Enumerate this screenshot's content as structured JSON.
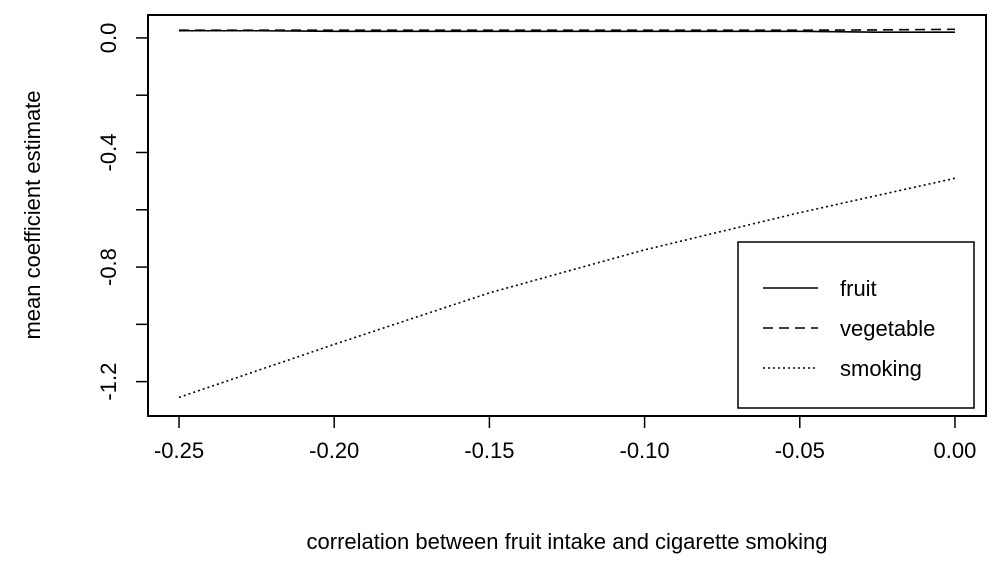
{
  "chart_data": {
    "type": "line",
    "xlabel": "correlation between fruit intake and cigarette smoking",
    "ylabel": "mean coefficient estimate",
    "xlim": [
      -0.26,
      0.01
    ],
    "ylim": [
      -1.32,
      0.08
    ],
    "x_ticks": [
      -0.25,
      -0.2,
      -0.15,
      -0.1,
      -0.05,
      0.0
    ],
    "x_tick_labels": [
      "-0.25",
      "-0.20",
      "-0.15",
      "-0.10",
      "-0.05",
      "0.00"
    ],
    "y_ticks": [
      0.0,
      -0.2,
      -0.4,
      -0.6,
      -0.8,
      -1.0,
      -1.2
    ],
    "y_tick_labels": [
      "0.0",
      "",
      "-0.4",
      "",
      "-0.8",
      "",
      "-1.2"
    ],
    "grid": false,
    "legend_position": "bottom-right",
    "series": [
      {
        "name": "fruit",
        "line_style": "solid",
        "x": [
          -0.25,
          -0.225,
          -0.2,
          -0.15,
          -0.1,
          -0.05,
          -0.025,
          0.0
        ],
        "y": [
          0.025,
          0.025,
          0.023,
          0.023,
          0.023,
          0.023,
          0.02,
          0.02
        ]
      },
      {
        "name": "vegetable",
        "line_style": "dashed",
        "x": [
          -0.25,
          -0.2,
          -0.15,
          -0.1,
          -0.05,
          -0.025,
          0.0
        ],
        "y": [
          0.027,
          0.027,
          0.027,
          0.027,
          0.027,
          0.028,
          0.03
        ]
      },
      {
        "name": "smoking",
        "line_style": "dotted",
        "x": [
          -0.25,
          -0.2,
          -0.15,
          -0.1,
          -0.05,
          0.0
        ],
        "y": [
          -1.255,
          -1.07,
          -0.89,
          -0.74,
          -0.61,
          -0.49
        ]
      }
    ]
  }
}
